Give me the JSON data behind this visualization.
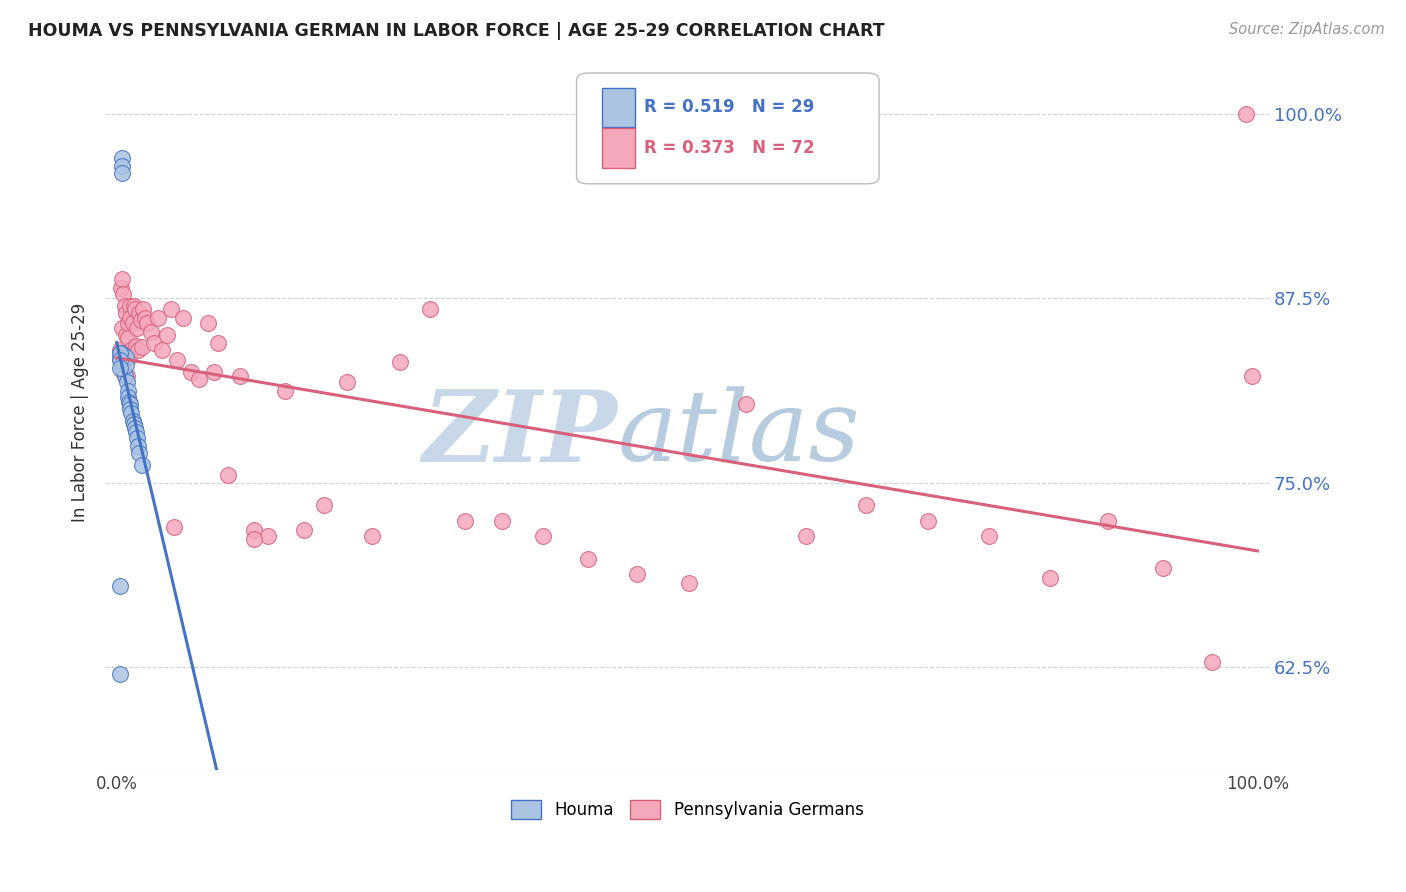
{
  "title": "HOUMA VS PENNSYLVANIA GERMAN IN LABOR FORCE | AGE 25-29 CORRELATION CHART",
  "source": "Source: ZipAtlas.com",
  "ylabel": "In Labor Force | Age 25-29",
  "xlim": [
    -0.01,
    1.01
  ],
  "ylim": [
    0.555,
    1.04
  ],
  "yticks": [
    0.625,
    0.75,
    0.875,
    1.0
  ],
  "ytick_labels": [
    "62.5%",
    "75.0%",
    "87.5%",
    "100.0%"
  ],
  "xtick_positions": [
    0.0,
    0.1,
    0.2,
    0.3,
    0.4,
    0.5,
    0.6,
    0.7,
    0.8,
    0.9,
    1.0
  ],
  "xtick_labels": [
    "0.0%",
    "",
    "",
    "",
    "",
    "",
    "",
    "",
    "",
    "",
    "100.0%"
  ],
  "houma_color": "#aac4e2",
  "penn_color": "#f5a8bc",
  "houma_line_color": "#4472c4",
  "penn_line_color": "#d9607a",
  "houma_R": 0.519,
  "houma_N": 29,
  "penn_R": 0.373,
  "penn_N": 72,
  "background_color": "#ffffff",
  "grid_color": "#cccccc",
  "houma_x": [
    0.004,
    0.004,
    0.005,
    0.005,
    0.005,
    0.006,
    0.007,
    0.008,
    0.008,
    0.009,
    0.01,
    0.01,
    0.011,
    0.012,
    0.012,
    0.013,
    0.014,
    0.015,
    0.016,
    0.017,
    0.018,
    0.019,
    0.02,
    0.022,
    0.003,
    0.003,
    0.003,
    0.003,
    0.003
  ],
  "houma_y": [
    0.838,
    0.833,
    0.97,
    0.965,
    0.96,
    0.828,
    0.822,
    0.835,
    0.83,
    0.818,
    0.812,
    0.808,
    0.805,
    0.803,
    0.8,
    0.797,
    0.792,
    0.79,
    0.787,
    0.784,
    0.78,
    0.775,
    0.77,
    0.762,
    0.838,
    0.833,
    0.828,
    0.68,
    0.62
  ],
  "penn_x": [
    0.003,
    0.003,
    0.004,
    0.005,
    0.005,
    0.006,
    0.006,
    0.007,
    0.008,
    0.008,
    0.009,
    0.01,
    0.01,
    0.011,
    0.012,
    0.012,
    0.013,
    0.014,
    0.015,
    0.016,
    0.017,
    0.018,
    0.019,
    0.02,
    0.021,
    0.022,
    0.023,
    0.025,
    0.027,
    0.03,
    0.033,
    0.036,
    0.04,
    0.044,
    0.048,
    0.053,
    0.058,
    0.065,
    0.072,
    0.08,
    0.089,
    0.098,
    0.108,
    0.12,
    0.133,
    0.148,
    0.164,
    0.182,
    0.202,
    0.224,
    0.248,
    0.275,
    0.305,
    0.338,
    0.374,
    0.413,
    0.456,
    0.502,
    0.552,
    0.604,
    0.657,
    0.711,
    0.765,
    0.818,
    0.869,
    0.917,
    0.96,
    0.995,
    0.05,
    0.085,
    0.12,
    0.99
  ],
  "penn_y": [
    0.84,
    0.835,
    0.882,
    0.888,
    0.855,
    0.825,
    0.878,
    0.87,
    0.865,
    0.85,
    0.822,
    0.858,
    0.848,
    0.835,
    0.87,
    0.862,
    0.84,
    0.858,
    0.87,
    0.868,
    0.843,
    0.855,
    0.84,
    0.865,
    0.86,
    0.842,
    0.868,
    0.862,
    0.858,
    0.852,
    0.845,
    0.862,
    0.84,
    0.85,
    0.868,
    0.833,
    0.862,
    0.825,
    0.82,
    0.858,
    0.845,
    0.755,
    0.822,
    0.718,
    0.714,
    0.812,
    0.718,
    0.735,
    0.818,
    0.714,
    0.832,
    0.868,
    0.724,
    0.724,
    0.714,
    0.698,
    0.688,
    0.682,
    0.803,
    0.714,
    0.735,
    0.724,
    0.714,
    0.685,
    0.724,
    0.692,
    0.628,
    0.822,
    0.72,
    0.825,
    0.712,
    1.0
  ],
  "watermark_zip": "ZIP",
  "watermark_atlas": "atlas",
  "watermark_color_zip": "#c8d8e8",
  "watermark_color_atlas": "#b8cce0"
}
